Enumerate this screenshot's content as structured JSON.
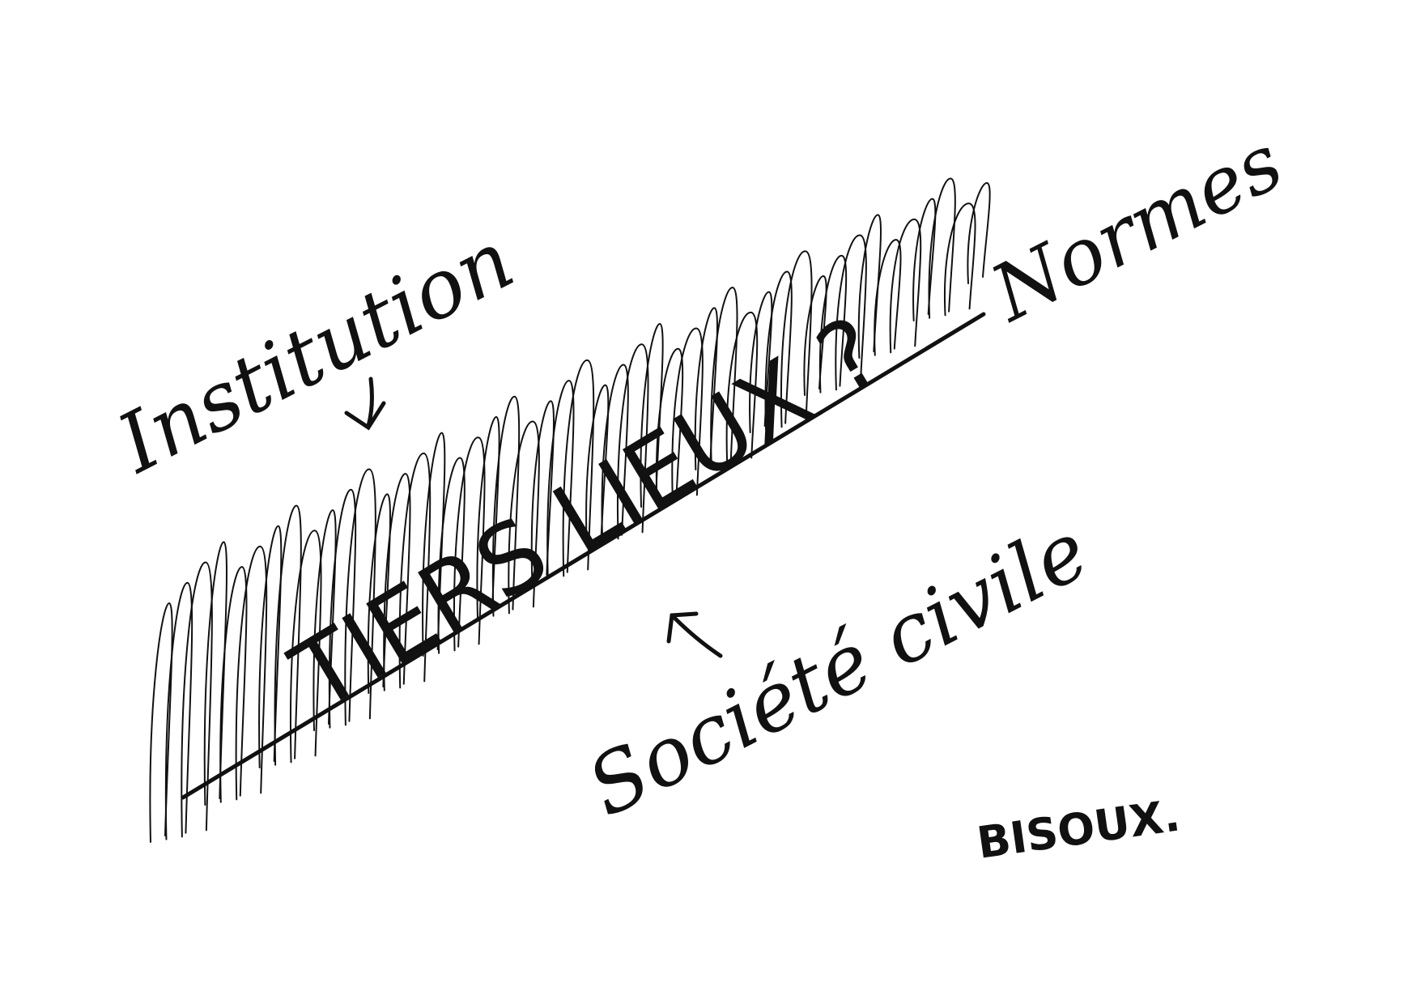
{
  "colors": {
    "ink": "#111111",
    "paper": "#ffffff"
  },
  "labels": {
    "institution": "Institution",
    "normes": "Normes",
    "central_word": "TIERS LIEUX ?",
    "societe_civile": "Société civile",
    "signature": "BISOUX."
  },
  "icons": {
    "arrow_down": "arrow-down-icon",
    "arrow_up": "arrow-up-icon"
  }
}
